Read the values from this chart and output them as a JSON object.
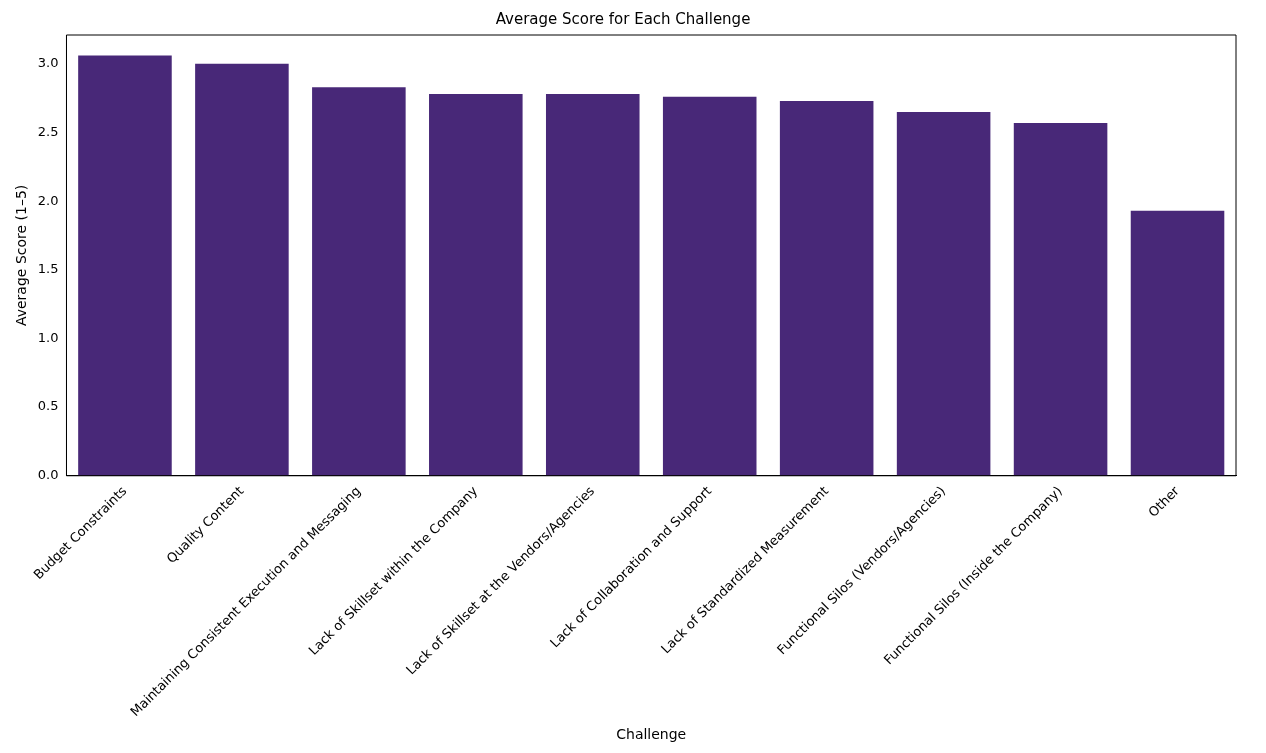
{
  "chart_data": {
    "type": "bar",
    "title": "Average Score for Each Challenge",
    "xlabel": "Challenge",
    "ylabel": "Average Score (1–5)",
    "categories": [
      "Budget Constraints",
      "Quality Content",
      "Maintaining Consistent Execution and Messaging",
      "Lack of Skillset within the Company",
      "Lack of Skillset at the Vendors/Agencies",
      "Lack of Collaboration and Support",
      "Lack of Standardized Measurement",
      "Functional Silos (Vendors/Agencies)",
      "Functional Silos (Inside the Company)",
      "Other"
    ],
    "values": [
      3.06,
      3.0,
      2.83,
      2.78,
      2.78,
      2.76,
      2.73,
      2.65,
      2.57,
      1.93
    ],
    "color": "#482878",
    "ylim": [
      0,
      3.21
    ],
    "yticks": [
      {
        "value": 0,
        "label": "0.0"
      },
      {
        "value": 0.5,
        "label": "0.5"
      },
      {
        "value": 1,
        "label": "1.0"
      },
      {
        "value": 1.5,
        "label": "1.5"
      },
      {
        "value": 2,
        "label": "2.0"
      },
      {
        "value": 2.5,
        "label": "2.5"
      },
      {
        "value": 3,
        "label": "3.0"
      }
    ],
    "grid": false,
    "legend": false
  }
}
